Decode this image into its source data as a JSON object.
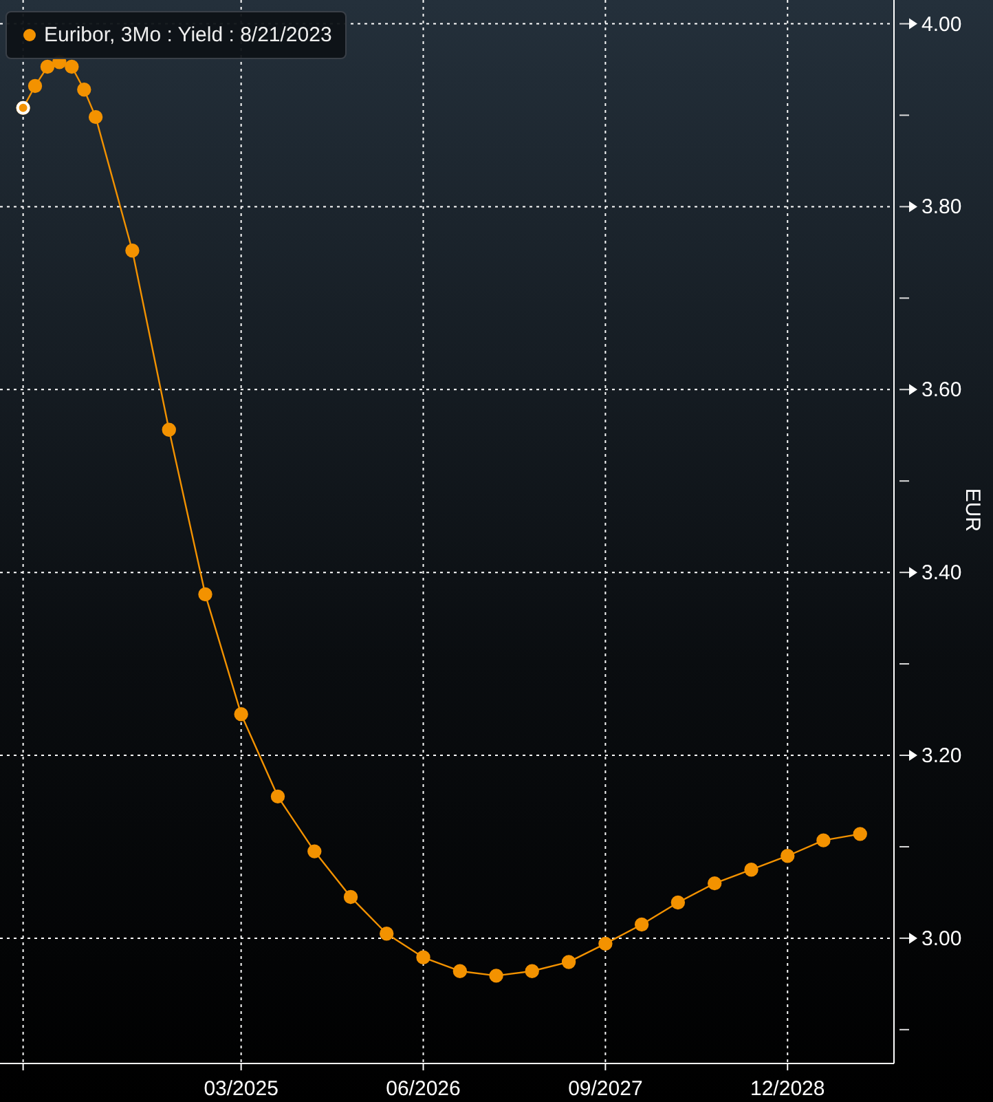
{
  "chart_data": {
    "type": "line",
    "ylabel": "EUR",
    "legend": "top left",
    "marker": "circle",
    "line_style": "solid",
    "grid": true,
    "x": [
      "2023-09",
      "2023-10",
      "2023-11",
      "2023-12",
      "2024-01",
      "2024-02",
      "2024-03",
      "2024-06",
      "2024-09",
      "2024-12",
      "2025-03",
      "2025-06",
      "2025-09",
      "2025-12",
      "2026-03",
      "2026-06",
      "2026-09",
      "2026-12",
      "2027-03",
      "2027-06",
      "2027-09",
      "2027-12",
      "2028-03",
      "2028-06",
      "2028-09",
      "2028-12",
      "2029-03",
      "2029-06"
    ],
    "series": [
      {
        "name": "Euribor, 3Mo : Yield : 8/21/2023",
        "color": "#f39200",
        "values": [
          3.908,
          3.932,
          3.953,
          3.958,
          3.953,
          3.928,
          3.898,
          3.752,
          3.556,
          3.376,
          3.245,
          3.155,
          3.095,
          3.045,
          3.005,
          2.979,
          2.964,
          2.959,
          2.964,
          2.974,
          2.994,
          3.015,
          3.039,
          3.06,
          3.075,
          3.09,
          3.107,
          3.114
        ]
      }
    ],
    "xlim": [
      "2023-07-05",
      "2029-08-25"
    ],
    "xticks": [
      {
        "value": "2023-09",
        "label": null
      },
      {
        "value": "2025-03",
        "label": "03/2025"
      },
      {
        "value": "2026-06",
        "label": "06/2026"
      },
      {
        "value": "2027-09",
        "label": "09/2027"
      },
      {
        "value": "2028-12",
        "label": "12/2028"
      }
    ],
    "ylim": [
      2.863,
      4.026
    ],
    "yticks": [
      {
        "value": 2.9,
        "label": null
      },
      {
        "value": 3.0,
        "label": "3.00"
      },
      {
        "value": 3.1,
        "label": null
      },
      {
        "value": 3.2,
        "label": "3.20"
      },
      {
        "value": 3.3,
        "label": null
      },
      {
        "value": 3.4,
        "label": "3.40"
      },
      {
        "value": 3.5,
        "label": null
      },
      {
        "value": 3.6,
        "label": "3.60"
      },
      {
        "value": 3.7,
        "label": null
      },
      {
        "value": 3.8,
        "label": "3.80"
      },
      {
        "value": 3.9,
        "label": null
      },
      {
        "value": 4.0,
        "label": "4.00"
      }
    ]
  }
}
